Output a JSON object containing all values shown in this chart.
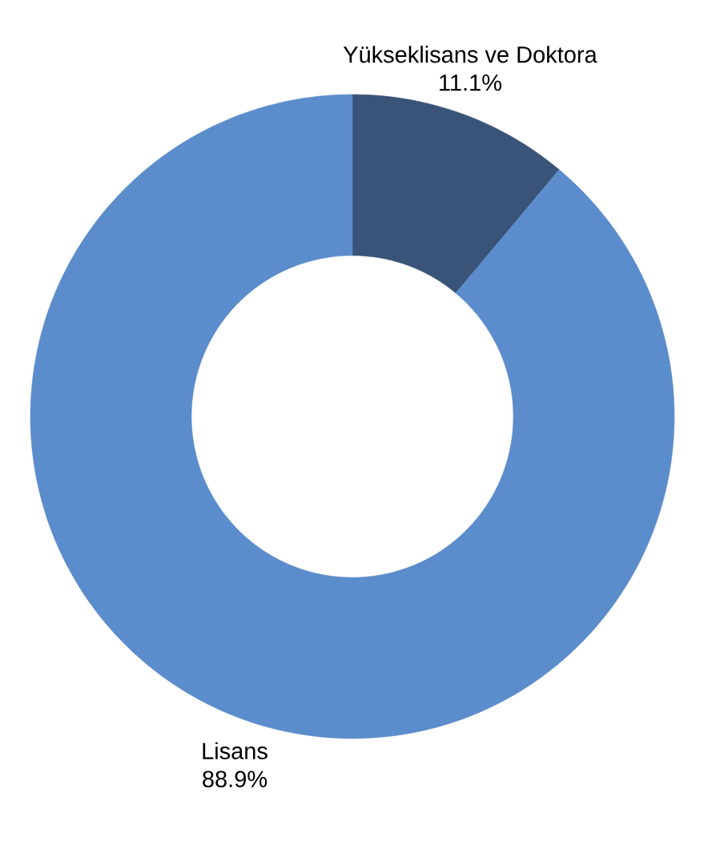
{
  "chart_data": {
    "type": "donut",
    "categories": [
      "Lisans",
      "Yükseklisans ve Doktora"
    ],
    "values": [
      88.9,
      11.1
    ],
    "colors": [
      "#5b8ccb",
      "#3a5378"
    ],
    "value_labels": [
      "88.9%",
      "11.1%"
    ]
  }
}
